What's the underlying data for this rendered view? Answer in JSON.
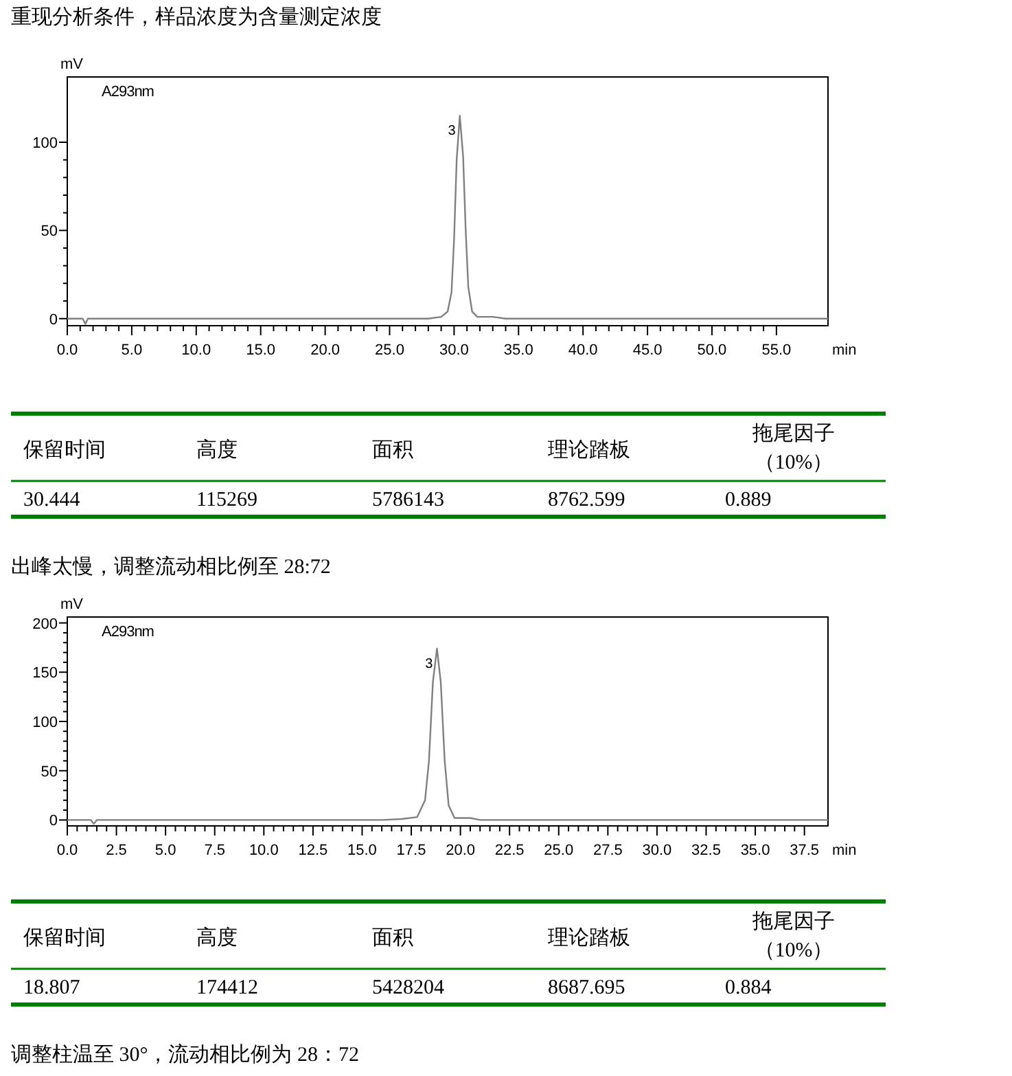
{
  "chart_data": [
    {
      "type": "line",
      "title": "重现分析条件，样品浓度为含量测定浓度",
      "xlabel": "min",
      "ylabel": "mV",
      "x": [
        0,
        1.2,
        1.4,
        1.6,
        2,
        26,
        28,
        29,
        29.5,
        29.8,
        30.0,
        30.2,
        30.444,
        30.7,
        30.9,
        31.1,
        31.4,
        31.8,
        33,
        34,
        59
      ],
      "series": [
        {
          "color": "#808080",
          "values": [
            0,
            0,
            -3,
            0,
            0,
            0,
            0,
            1,
            4,
            15,
            45,
            90,
            115,
            92,
            50,
            18,
            4,
            1,
            1,
            0,
            0
          ]
        }
      ],
      "xlim": [
        0,
        59
      ],
      "ylim": [
        -4,
        137
      ],
      "xticks": [
        {
          "value": 0,
          "label": "0.0"
        },
        {
          "value": 5,
          "label": "5.0"
        },
        {
          "value": 10,
          "label": "10.0"
        },
        {
          "value": 15,
          "label": "15.0"
        },
        {
          "value": 20,
          "label": "20.0"
        },
        {
          "value": 25,
          "label": "25.0"
        },
        {
          "value": 30,
          "label": "30.0"
        },
        {
          "value": 35,
          "label": "35.0"
        },
        {
          "value": 40,
          "label": "40.0"
        },
        {
          "value": 45,
          "label": "45.0"
        },
        {
          "value": 50,
          "label": "50.0"
        },
        {
          "value": 55,
          "label": "55.0"
        }
      ],
      "yticks": [
        0,
        50,
        100
      ],
      "annotations": [
        "A293nm",
        {
          "text": "3",
          "x": 30.444,
          "y": 115
        }
      ]
    },
    {
      "type": "other",
      "categories": [
        "保留时间",
        "高度",
        "面积",
        "理论踏板",
        "拖尾因子（10%）"
      ],
      "values": [
        30.444,
        115269,
        5786143,
        8762.599,
        0.889
      ],
      "data_labels": true
    },
    {
      "type": "line",
      "title": "出峰太慢，调整流动相比例至 28:72",
      "xlabel": "min",
      "ylabel": "mV",
      "x": [
        0,
        1.2,
        1.35,
        1.5,
        2,
        16,
        17,
        17.8,
        18.2,
        18.4,
        18.6,
        18.807,
        19.0,
        19.2,
        19.4,
        19.7,
        20.5,
        21,
        38.7
      ],
      "series": [
        {
          "color": "#808080",
          "values": [
            0,
            0,
            -4,
            0,
            0,
            0,
            1,
            3,
            20,
            60,
            140,
            174,
            140,
            60,
            15,
            2,
            2,
            0,
            0
          ]
        }
      ],
      "xlim": [
        0,
        38.7
      ],
      "ylim": [
        -6,
        206
      ],
      "xticks": [
        {
          "value": 0,
          "label": "0.0"
        },
        {
          "value": 2.5,
          "label": "2.5"
        },
        {
          "value": 5,
          "label": "5.0"
        },
        {
          "value": 7.5,
          "label": "7.5"
        },
        {
          "value": 10,
          "label": "10.0"
        },
        {
          "value": 12.5,
          "label": "12.5"
        },
        {
          "value": 15,
          "label": "15.0"
        },
        {
          "value": 17.5,
          "label": "17.5"
        },
        {
          "value": 20,
          "label": "20.0"
        },
        {
          "value": 22.5,
          "label": "22.5"
        },
        {
          "value": 25,
          "label": "25.0"
        },
        {
          "value": 27.5,
          "label": "27.5"
        },
        {
          "value": 30,
          "label": "30.0"
        },
        {
          "value": 32.5,
          "label": "32.5"
        },
        {
          "value": 35,
          "label": "35.0"
        },
        {
          "value": 37.5,
          "label": "37.5"
        }
      ],
      "yticks": [
        0,
        50,
        100,
        150,
        200
      ],
      "annotations": [
        "A293nm",
        {
          "text": "3",
          "x": 18.807,
          "y": 174
        }
      ]
    },
    {
      "type": "other",
      "categories": [
        "保留时间",
        "高度",
        "面积",
        "理论踏板",
        "拖尾因子（10%）"
      ],
      "values": [
        18.807,
        174412,
        5428204,
        8687.695,
        0.884
      ],
      "data_labels": true
    },
    {
      "type": "other",
      "title": "调整柱温至 30°，流动相比例为 28：72"
    }
  ]
}
